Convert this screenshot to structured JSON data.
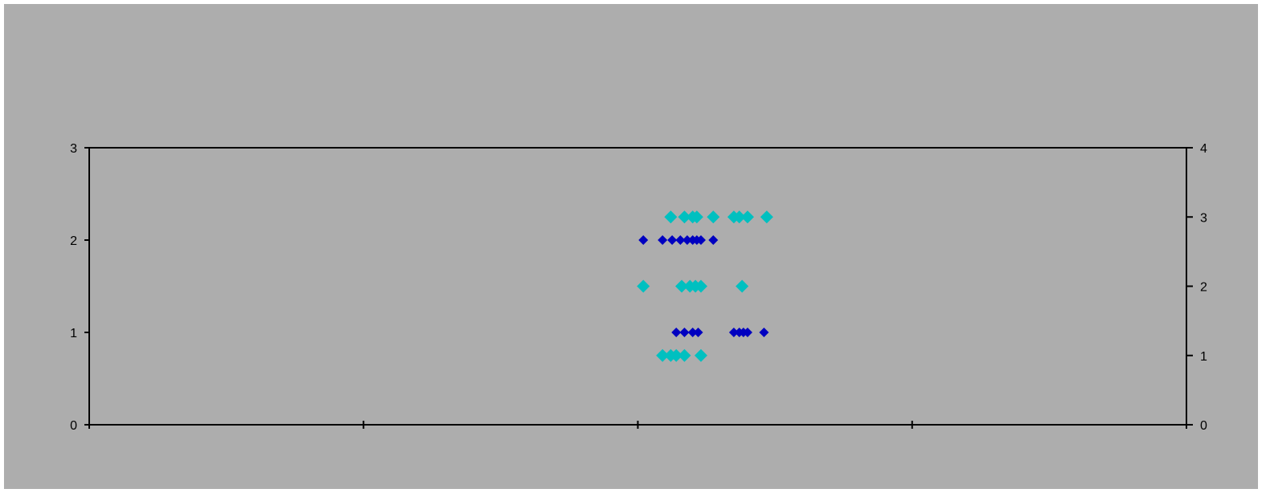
{
  "colors": {
    "background": "#adadad",
    "axis": "#000000",
    "series_left": "#0000c0",
    "series_right": "#00c0c0"
  },
  "chart_data": {
    "type": "scatter",
    "title": "",
    "grid": false,
    "legend": "none",
    "x_axis": {
      "range": [
        0,
        4
      ],
      "ticks": [
        0,
        1,
        2,
        3,
        4
      ],
      "tick_labels_shown": false
    },
    "y_axis_left": {
      "range": [
        0,
        3
      ],
      "ticks": [
        0,
        1,
        2,
        3
      ],
      "tick_labels": [
        "0",
        "1",
        "2",
        "3"
      ]
    },
    "y_axis_right": {
      "range": [
        0,
        4
      ],
      "ticks": [
        0,
        1,
        2,
        3,
        4
      ],
      "tick_labels": [
        "0",
        "1",
        "2",
        "3",
        "4"
      ]
    },
    "series": [
      {
        "axis": "left",
        "marker": "diamond-small",
        "color": "#0000c0",
        "points": [
          {
            "x": 2.02,
            "y": 2
          },
          {
            "x": 2.09,
            "y": 2
          },
          {
            "x": 2.125,
            "y": 2
          },
          {
            "x": 2.155,
            "y": 2
          },
          {
            "x": 2.18,
            "y": 2
          },
          {
            "x": 2.2,
            "y": 2
          },
          {
            "x": 2.215,
            "y": 2
          },
          {
            "x": 2.23,
            "y": 2
          },
          {
            "x": 2.275,
            "y": 2
          },
          {
            "x": 2.14,
            "y": 1
          },
          {
            "x": 2.17,
            "y": 1
          },
          {
            "x": 2.2,
            "y": 1
          },
          {
            "x": 2.22,
            "y": 1
          },
          {
            "x": 2.35,
            "y": 1
          },
          {
            "x": 2.37,
            "y": 1
          },
          {
            "x": 2.385,
            "y": 1
          },
          {
            "x": 2.4,
            "y": 1
          },
          {
            "x": 2.46,
            "y": 1
          }
        ]
      },
      {
        "axis": "right",
        "marker": "diamond-large",
        "color": "#00c0c0",
        "points": [
          {
            "x": 2.12,
            "y": 3
          },
          {
            "x": 2.17,
            "y": 3
          },
          {
            "x": 2.2,
            "y": 3
          },
          {
            "x": 2.215,
            "y": 3
          },
          {
            "x": 2.275,
            "y": 3
          },
          {
            "x": 2.35,
            "y": 3
          },
          {
            "x": 2.37,
            "y": 3
          },
          {
            "x": 2.4,
            "y": 3
          },
          {
            "x": 2.47,
            "y": 3
          },
          {
            "x": 2.02,
            "y": 2
          },
          {
            "x": 2.16,
            "y": 2
          },
          {
            "x": 2.19,
            "y": 2
          },
          {
            "x": 2.21,
            "y": 2
          },
          {
            "x": 2.23,
            "y": 2
          },
          {
            "x": 2.38,
            "y": 2
          },
          {
            "x": 2.09,
            "y": 1
          },
          {
            "x": 2.12,
            "y": 1
          },
          {
            "x": 2.14,
            "y": 1
          },
          {
            "x": 2.17,
            "y": 1
          },
          {
            "x": 2.23,
            "y": 1
          }
        ]
      }
    ]
  }
}
